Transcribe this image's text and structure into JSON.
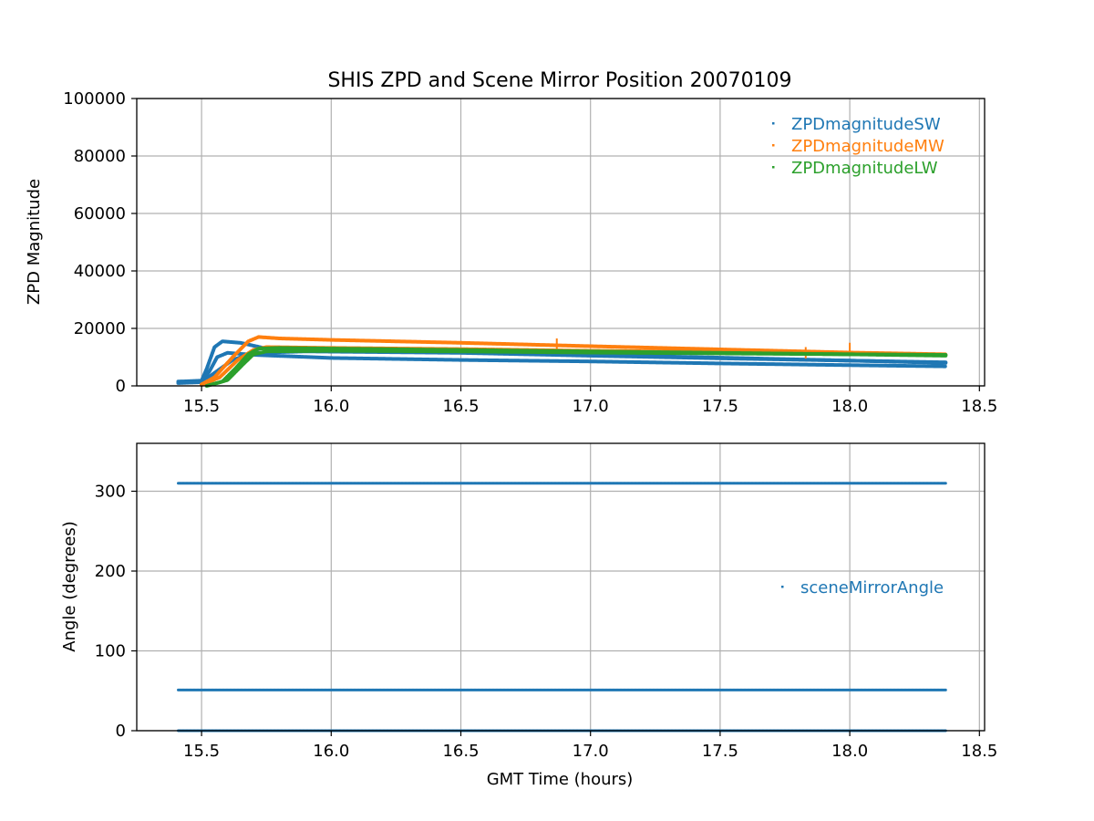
{
  "chart_data": [
    {
      "type": "scatter",
      "title": "SHIS ZPD and Scene Mirror Position 20070109",
      "xlabel": "",
      "ylabel": "ZPD Magnitude",
      "xlim": [
        15.25,
        18.52
      ],
      "ylim": [
        0,
        100000
      ],
      "x_ticks": [
        "15.5",
        "16.0",
        "16.5",
        "17.0",
        "17.5",
        "18.0",
        "18.5"
      ],
      "y_ticks": [
        "0",
        "20000",
        "40000",
        "60000",
        "80000",
        "100000"
      ],
      "grid": true,
      "legend_position": "upper-right",
      "series": [
        {
          "name": "ZPDmagnitudeSW",
          "color": "#1f77b4",
          "traces": [
            {
              "x": [
                15.41,
                15.5,
                15.52,
                15.55,
                15.58,
                15.65,
                15.75,
                16.0,
                16.5,
                17.0,
                17.5,
                18.0,
                18.37
              ],
              "y": [
                1500,
                1800,
                6000,
                13500,
                15500,
                15000,
                13000,
                12500,
                11800,
                10800,
                9800,
                8800,
                8200
              ]
            },
            {
              "x": [
                15.41,
                15.5,
                15.53,
                15.56,
                15.6,
                15.7,
                16.0,
                16.5,
                17.0,
                17.5,
                18.0,
                18.37
              ],
              "y": [
                1200,
                1600,
                5000,
                10000,
                11500,
                10800,
                9700,
                9000,
                8500,
                7800,
                7200,
                6800
              ]
            },
            {
              "x": [
                15.41,
                15.5,
                15.55,
                15.62,
                15.7,
                15.9,
                16.5,
                17.0,
                17.5,
                18.0,
                18.37
              ],
              "y": [
                1000,
                1300,
                4500,
                9000,
                11500,
                12000,
                11500,
                10500,
                9600,
                8800,
                8000
              ]
            }
          ]
        },
        {
          "name": "ZPDmagnitudeMW",
          "color": "#ff7f0e",
          "traces": [
            {
              "x": [
                15.5,
                15.55,
                15.62,
                15.68,
                15.72,
                15.8,
                16.0,
                16.5,
                17.0,
                17.5,
                18.0,
                18.37
              ],
              "y": [
                500,
                3000,
                10000,
                15500,
                17000,
                16500,
                16000,
                15000,
                13800,
                12700,
                11600,
                11000
              ]
            },
            {
              "x": [
                15.5,
                15.57,
                15.64,
                15.7,
                15.75,
                16.0,
                16.5,
                17.0,
                17.5,
                18.0,
                18.37
              ],
              "y": [
                300,
                3000,
                9000,
                12500,
                13500,
                13200,
                12800,
                12200,
                11800,
                11200,
                10800
              ]
            }
          ],
          "spikes": [
            {
              "x": 16.87,
              "y": 16500
            },
            {
              "x": 17.83,
              "y": 13500
            },
            {
              "x": 18.0,
              "y": 15000
            }
          ]
        },
        {
          "name": "ZPDmagnitudeLW",
          "color": "#2ca02c",
          "traces": [
            {
              "x": [
                15.52,
                15.58,
                15.63,
                15.68,
                15.72,
                15.8,
                16.0,
                16.5,
                17.0,
                17.5,
                18.0,
                18.37
              ],
              "y": [
                0,
                1500,
                6000,
                11000,
                13000,
                13200,
                13000,
                12500,
                12000,
                11500,
                11000,
                10500
              ]
            },
            {
              "x": [
                15.52,
                15.6,
                15.66,
                15.7,
                15.75,
                16.0,
                16.5,
                17.0,
                17.5,
                18.0,
                18.37
              ],
              "y": [
                0,
                2000,
                7500,
                11000,
                12000,
                12200,
                12000,
                11600,
                11300,
                11000,
                10800
              ]
            }
          ]
        }
      ]
    },
    {
      "type": "scatter",
      "title": "",
      "xlabel": "GMT Time (hours)",
      "ylabel": "Angle (degrees)",
      "xlim": [
        15.25,
        18.52
      ],
      "ylim": [
        0,
        360
      ],
      "x_ticks": [
        "15.5",
        "16.0",
        "16.5",
        "17.0",
        "17.5",
        "18.0",
        "18.5"
      ],
      "y_ticks": [
        "0",
        "100",
        "200",
        "300"
      ],
      "grid": true,
      "legend_position": "center-right",
      "series": [
        {
          "name": "sceneMirrorAngle",
          "color": "#1f77b4",
          "traces": [
            {
              "x": [
                15.41,
                18.37
              ],
              "y": [
                310,
                310
              ]
            },
            {
              "x": [
                15.41,
                18.37
              ],
              "y": [
                51,
                51
              ]
            },
            {
              "x": [
                15.41,
                18.37
              ],
              "y": [
                0,
                0
              ]
            }
          ]
        }
      ]
    }
  ]
}
